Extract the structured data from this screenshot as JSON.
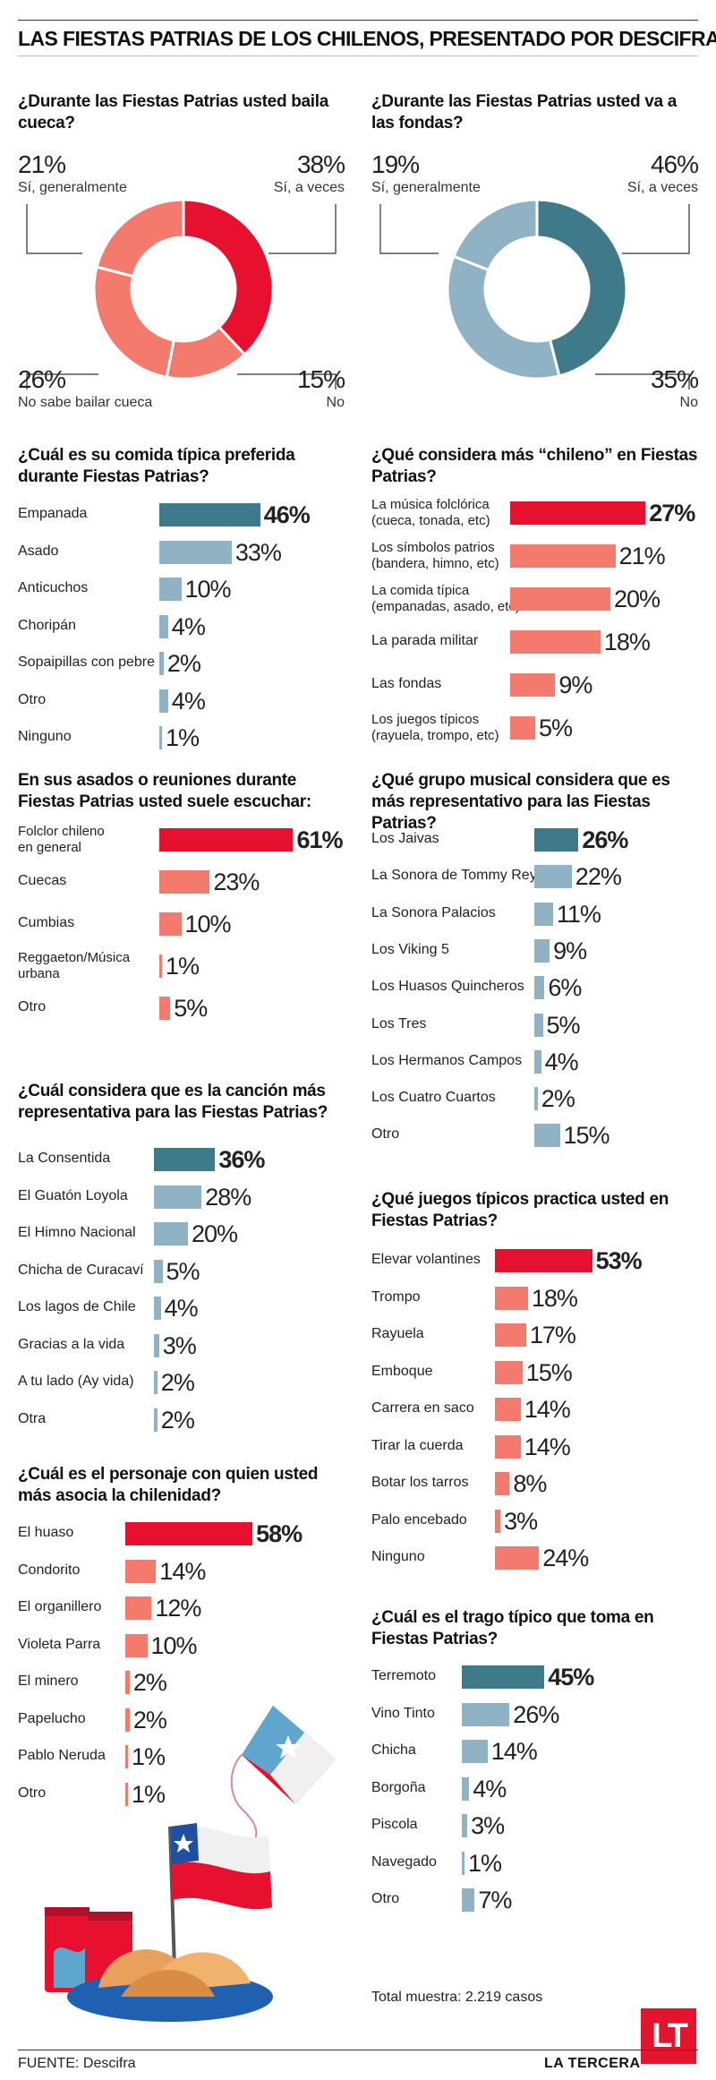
{
  "header": {
    "title": "LAS FIESTAS PATRIAS DE LOS CHILENOS, PRESENTADO POR DESCIFRA"
  },
  "colors": {
    "red": "#e8102f",
    "salmon": "#f57a6e",
    "teal": "#3e7a8a",
    "lightblue": "#8fb3c4",
    "pink": "#f38b8b"
  },
  "chart_data": [
    {
      "id": "cueca",
      "type": "pie",
      "title": "¿Durante las Fiestas Patrias usted baila cueca?",
      "slices": [
        {
          "name": "Sí, a veces",
          "value": 38,
          "pct": "38%",
          "color": "#e8102f"
        },
        {
          "name": "No",
          "value": 15,
          "pct": "15%",
          "color": "#f57a6e"
        },
        {
          "name": "No sabe bailar cueca",
          "value": 26,
          "pct": "26%",
          "color": "#f57a6e"
        },
        {
          "name": "Sí, generalmente",
          "value": 21,
          "pct": "21%",
          "color": "#f57a6e"
        }
      ]
    },
    {
      "id": "fondas",
      "type": "pie",
      "title": "¿Durante las Fiestas Patrias usted va a las fondas?",
      "slices": [
        {
          "name": "Sí, a veces",
          "value": 46,
          "pct": "46%",
          "color": "#3e7a8a"
        },
        {
          "name": "No",
          "value": 35,
          "pct": "35%",
          "color": "#8fb3c4"
        },
        {
          "name": "Sí, generalmente",
          "value": 19,
          "pct": "19%",
          "color": "#8fb3c4"
        }
      ]
    },
    {
      "id": "comida",
      "type": "bar",
      "title": "¿Cuál es su comida típica preferida durante Fiestas Patrias?",
      "categories": [
        "Empanada",
        "Asado",
        "Anticuchos",
        "Choripán",
        "Sopaipillas con pebre",
        "Otro",
        "Ninguno"
      ],
      "values": [
        46,
        33,
        10,
        4,
        2,
        4,
        1
      ],
      "labels": [
        "46%",
        "33%",
        "10%",
        "4%",
        "2%",
        "4%",
        "1%"
      ],
      "colors": [
        "#3e7a8a",
        "#8fb3c4",
        "#8fb3c4",
        "#8fb3c4",
        "#8fb3c4",
        "#8fb3c4",
        "#8fb3c4"
      ]
    },
    {
      "id": "chileno",
      "type": "bar",
      "title": "¿Qué considera más “chileno” en Fiestas Patrias?",
      "categories": [
        [
          "La música folclórica",
          "(cueca, tonada, etc)"
        ],
        [
          "Los símbolos patrios",
          "(bandera, himno, etc)"
        ],
        [
          "La comida típica",
          "(empanadas, asado, etc)"
        ],
        [
          "La parada militar"
        ],
        [
          "Las fondas"
        ],
        [
          "Los juegos típicos",
          "(rayuela, trompo, etc)"
        ]
      ],
      "values": [
        27,
        21,
        20,
        18,
        9,
        5
      ],
      "labels": [
        "27%",
        "21%",
        "20%",
        "18%",
        "9%",
        "5%"
      ],
      "colors": [
        "#e8102f",
        "#f57a6e",
        "#f57a6e",
        "#f57a6e",
        "#f57a6e",
        "#f57a6e"
      ]
    },
    {
      "id": "escuchar",
      "type": "bar",
      "title": "En sus asados o reuniones durante Fiestas Patrias usted suele escuchar:",
      "categories": [
        [
          "Folclor chileno",
          "en general"
        ],
        [
          "Cuecas"
        ],
        [
          "Cumbias"
        ],
        [
          "Reggaeton/Música",
          "urbana"
        ],
        [
          "Otro"
        ]
      ],
      "values": [
        61,
        23,
        10,
        1,
        5
      ],
      "labels": [
        "61%",
        "23%",
        "10%",
        "1%",
        "5%"
      ],
      "colors": [
        "#e8102f",
        "#f57a6e",
        "#f57a6e",
        "#f57a6e",
        "#f57a6e"
      ]
    },
    {
      "id": "grupo",
      "type": "bar",
      "title": "¿Qué grupo musical considera que es más representativo para las Fiestas Patrias?",
      "categories": [
        "Los Jaivas",
        "La Sonora de Tommy Rey",
        "La Sonora Palacios",
        "Los Viking 5",
        "Los Huasos Quincheros",
        "Los Tres",
        "Los Hermanos Campos",
        "Los Cuatro Cuartos",
        "Otro"
      ],
      "values": [
        26,
        22,
        11,
        9,
        6,
        5,
        4,
        2,
        15
      ],
      "labels": [
        "26%",
        "22%",
        "11%",
        "9%",
        "6%",
        "5%",
        "4%",
        "2%",
        "15%"
      ],
      "colors": [
        "#3e7a8a",
        "#8fb3c4",
        "#8fb3c4",
        "#8fb3c4",
        "#8fb3c4",
        "#8fb3c4",
        "#8fb3c4",
        "#8fb3c4",
        "#8fb3c4"
      ]
    },
    {
      "id": "cancion",
      "type": "bar",
      "title": "¿Cuál considera que es la canción más representativa para las Fiestas Patrias?",
      "categories": [
        "La Consentida",
        "El Guatón Loyola",
        "El Himno Nacional",
        "Chicha de Curacaví",
        "Los lagos de Chile",
        "Gracias a la vida",
        "A tu lado (Ay vida)",
        "Otra"
      ],
      "values": [
        36,
        28,
        20,
        5,
        4,
        3,
        2,
        2
      ],
      "labels": [
        "36%",
        "28%",
        "20%",
        "5%",
        "4%",
        "3%",
        "2%",
        "2%"
      ],
      "colors": [
        "#3e7a8a",
        "#8fb3c4",
        "#8fb3c4",
        "#8fb3c4",
        "#8fb3c4",
        "#8fb3c4",
        "#8fb3c4",
        "#8fb3c4"
      ]
    },
    {
      "id": "juegos",
      "type": "bar",
      "title": "¿Qué juegos típicos practica usted en Fiestas Patrias?",
      "categories": [
        "Elevar volantines",
        "Trompo",
        "Rayuela",
        "Emboque",
        "Carrera en saco",
        "Tirar la cuerda",
        "Botar los tarros",
        "Palo encebado",
        "Ninguno"
      ],
      "values": [
        53,
        18,
        17,
        15,
        14,
        14,
        8,
        3,
        24
      ],
      "labels": [
        "53%",
        "18%",
        "17%",
        "15%",
        "14%",
        "14%",
        "8%",
        "3%",
        "24%"
      ],
      "colors": [
        "#e8102f",
        "#f57a6e",
        "#f57a6e",
        "#f57a6e",
        "#f57a6e",
        "#f57a6e",
        "#f57a6e",
        "#f57a6e",
        "#f57a6e"
      ]
    },
    {
      "id": "personaje",
      "type": "bar",
      "title": "¿Cuál es el personaje con quien usted más asocia la chilenidad?",
      "categories": [
        "El huaso",
        "Condorito",
        "El organillero",
        "Violeta Parra",
        "El minero",
        "Papelucho",
        "Pablo Neruda",
        "Otro"
      ],
      "values": [
        58,
        14,
        12,
        10,
        2,
        2,
        1,
        1
      ],
      "labels": [
        "58%",
        "14%",
        "12%",
        "10%",
        "2%",
        "2%",
        "1%",
        "1%"
      ],
      "colors": [
        "#e8102f",
        "#f57a6e",
        "#f57a6e",
        "#f57a6e",
        "#f57a6e",
        "#f57a6e",
        "#f57a6e",
        "#f57a6e"
      ]
    },
    {
      "id": "trago",
      "type": "bar",
      "title": "¿Cuál es el trago típico que toma en Fiestas Patrias?",
      "categories": [
        "Terremoto",
        "Vino Tinto",
        "Chicha",
        "Borgoña",
        "Piscola",
        "Navegado",
        "Otro"
      ],
      "values": [
        45,
        26,
        14,
        4,
        3,
        1,
        7
      ],
      "labels": [
        "45%",
        "26%",
        "14%",
        "4%",
        "3%",
        "1%",
        "7%"
      ],
      "colors": [
        "#3e7a8a",
        "#8fb3c4",
        "#8fb3c4",
        "#8fb3c4",
        "#8fb3c4",
        "#8fb3c4",
        "#8fb3c4"
      ]
    }
  ],
  "footer": {
    "total": "Total muestra: 2.219 casos",
    "source": "FUENTE: Descifra",
    "brand": "LA TERCERA",
    "logo": "LT"
  }
}
